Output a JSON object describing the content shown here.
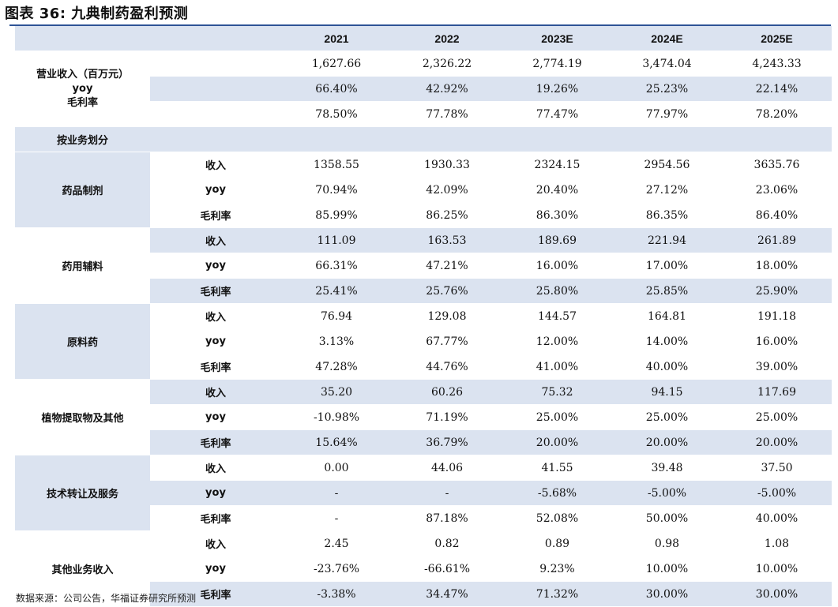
{
  "title": "图表 36:  九典制药盈利预测",
  "header": {
    "label": "",
    "years": [
      "2021",
      "2022",
      "2023E",
      "2024E",
      "2025E"
    ]
  },
  "summary": {
    "labels": [
      "营业收入（百万元）",
      "yoy",
      "毛利率"
    ],
    "rows": [
      [
        "1,627.66",
        "2,326.22",
        "2,774.19",
        "3,474.04",
        "4,243.33"
      ],
      [
        "66.40%",
        "42.92%",
        "19.26%",
        "25.23%",
        "22.14%"
      ],
      [
        "78.50%",
        "77.78%",
        "77.47%",
        "77.97%",
        "78.20%"
      ]
    ]
  },
  "split_label": "按业务划分",
  "segments": [
    {
      "name": "药品制剂",
      "rows": [
        {
          "label": "收入",
          "values": [
            "1358.55",
            "1930.33",
            "2324.15",
            "2954.56",
            "3635.76"
          ]
        },
        {
          "label": "yoy",
          "values": [
            "70.94%",
            "42.09%",
            "20.40%",
            "27.12%",
            "23.06%"
          ]
        },
        {
          "label": "毛利率",
          "values": [
            "85.99%",
            "86.25%",
            "86.30%",
            "86.35%",
            "86.40%"
          ]
        }
      ]
    },
    {
      "name": "药用辅料",
      "rows": [
        {
          "label": "收入",
          "values": [
            "111.09",
            "163.53",
            "189.69",
            "221.94",
            "261.89"
          ]
        },
        {
          "label": "yoy",
          "values": [
            "66.31%",
            "47.21%",
            "16.00%",
            "17.00%",
            "18.00%"
          ]
        },
        {
          "label": "毛利率",
          "values": [
            "25.41%",
            "25.76%",
            "25.80%",
            "25.85%",
            "25.90%"
          ]
        }
      ]
    },
    {
      "name": "原料药",
      "rows": [
        {
          "label": "收入",
          "values": [
            "76.94",
            "129.08",
            "144.57",
            "164.81",
            "191.18"
          ]
        },
        {
          "label": "yoy",
          "values": [
            "3.13%",
            "67.77%",
            "12.00%",
            "14.00%",
            "16.00%"
          ]
        },
        {
          "label": "毛利率",
          "values": [
            "47.28%",
            "44.76%",
            "41.00%",
            "40.00%",
            "39.00%"
          ]
        }
      ]
    },
    {
      "name": "植物提取物及其他",
      "rows": [
        {
          "label": "收入",
          "values": [
            "35.20",
            "60.26",
            "75.32",
            "94.15",
            "117.69"
          ]
        },
        {
          "label": "yoy",
          "values": [
            "-10.98%",
            "71.19%",
            "25.00%",
            "25.00%",
            "25.00%"
          ]
        },
        {
          "label": "毛利率",
          "values": [
            "15.64%",
            "36.79%",
            "20.00%",
            "20.00%",
            "20.00%"
          ]
        }
      ]
    },
    {
      "name": "技术转让及服务",
      "rows": [
        {
          "label": "收入",
          "values": [
            "0.00",
            "44.06",
            "41.55",
            "39.48",
            "37.50"
          ]
        },
        {
          "label": "yoy",
          "values": [
            "-",
            "-",
            "-5.68%",
            "-5.00%",
            "-5.00%"
          ]
        },
        {
          "label": "毛利率",
          "values": [
            "-",
            "87.18%",
            "52.08%",
            "50.00%",
            "40.00%"
          ]
        }
      ]
    },
    {
      "name": "其他业务收入",
      "rows": [
        {
          "label": "收入",
          "values": [
            "2.45",
            "0.82",
            "0.89",
            "0.98",
            "1.08"
          ]
        },
        {
          "label": "yoy",
          "values": [
            "-23.76%",
            "-66.61%",
            "9.23%",
            "10.00%",
            "10.00%"
          ]
        },
        {
          "label": "毛利率",
          "values": [
            "-3.38%",
            "34.47%",
            "71.32%",
            "30.00%",
            "30.00%"
          ]
        }
      ]
    }
  ],
  "footer": "数据来源：公司公告，华福证券研究所预测"
}
